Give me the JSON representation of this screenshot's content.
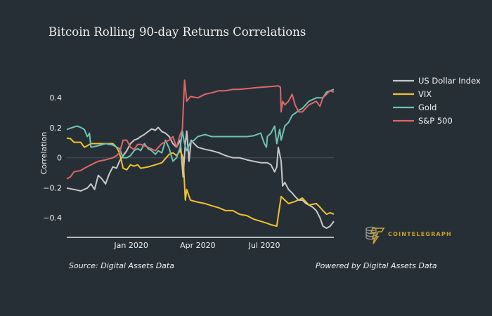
{
  "chart_data": {
    "type": "line",
    "title": "Bitcoin Rolling 90-day Returns Correlations",
    "xlabel": "",
    "ylabel": "Correlation",
    "xlim": [
      "2019-10-05",
      "2020-10-04"
    ],
    "ylim": [
      -0.53,
      0.55
    ],
    "x_ticks": [
      {
        "value": "2020-01-01",
        "label": "Jan 2020"
      },
      {
        "value": "2020-04-01",
        "label": "Apr 2020"
      },
      {
        "value": "2020-07-01",
        "label": "Jul 2020"
      }
    ],
    "y_ticks": [
      {
        "value": 0.4,
        "label": "0.4"
      },
      {
        "value": 0.2,
        "label": "0.2"
      },
      {
        "value": 0,
        "label": "0"
      },
      {
        "value": -0.2,
        "label": "−0.2"
      },
      {
        "value": -0.4,
        "label": "−0.4"
      }
    ],
    "grid": false,
    "zero_line": true,
    "legend_position": "top-right",
    "series": [
      {
        "name": "US Dollar Index",
        "color": "#c8c8c8",
        "x": [
          "2019-10-05",
          "2019-10-15",
          "2019-10-24",
          "2019-11-02",
          "2019-11-07",
          "2019-11-12",
          "2019-11-17",
          "2019-11-22",
          "2019-11-27",
          "2019-12-02",
          "2019-12-07",
          "2019-12-12",
          "2019-12-16",
          "2019-12-21",
          "2019-12-26",
          "2019-12-31",
          "2020-01-05",
          "2020-01-10",
          "2020-01-14",
          "2020-01-19",
          "2020-01-24",
          "2020-01-29",
          "2020-02-03",
          "2020-02-07",
          "2020-02-12",
          "2020-02-17",
          "2020-02-22",
          "2020-02-27",
          "2020-03-03",
          "2020-03-08",
          "2020-03-12",
          "2020-03-15",
          "2020-03-17",
          "2020-03-20",
          "2020-03-23",
          "2020-03-27",
          "2020-04-01",
          "2020-04-11",
          "2020-04-20",
          "2020-04-30",
          "2020-05-09",
          "2020-05-19",
          "2020-05-28",
          "2020-06-07",
          "2020-06-16",
          "2020-06-26",
          "2020-07-05",
          "2020-07-10",
          "2020-07-15",
          "2020-07-18",
          "2020-07-20",
          "2020-07-22",
          "2020-07-24",
          "2020-07-26",
          "2020-07-29",
          "2020-08-03",
          "2020-08-08",
          "2020-08-12",
          "2020-08-17",
          "2020-08-22",
          "2020-08-27",
          "2020-08-31",
          "2020-09-05",
          "2020-09-10",
          "2020-09-15",
          "2020-09-19",
          "2020-09-24",
          "2020-09-29",
          "2020-10-04"
        ],
        "y": [
          -0.202,
          -0.211,
          -0.221,
          -0.202,
          -0.174,
          -0.211,
          -0.117,
          -0.141,
          -0.174,
          -0.108,
          -0.061,
          -0.07,
          -0.023,
          0.014,
          0.047,
          0.094,
          0.117,
          0.127,
          0.141,
          0.155,
          0.174,
          0.192,
          0.183,
          0.202,
          0.174,
          0.164,
          0.141,
          0.094,
          0.07,
          0.117,
          -0.127,
          0.094,
          0.178,
          -0.023,
          0.117,
          0.094,
          0.07,
          0.056,
          0.047,
          0.033,
          0.014,
          0.0,
          0.0,
          -0.014,
          -0.023,
          -0.033,
          -0.033,
          -0.047,
          -0.094,
          -0.061,
          0.07,
          0.023,
          -0.023,
          -0.188,
          -0.164,
          -0.211,
          -0.235,
          -0.258,
          -0.282,
          -0.282,
          -0.305,
          -0.315,
          -0.329,
          -0.352,
          -0.399,
          -0.455,
          -0.469,
          -0.455,
          -0.423
        ]
      },
      {
        "name": "VIX",
        "color": "#f2c12e",
        "x": [
          "2019-10-05",
          "2019-10-10",
          "2019-10-15",
          "2019-10-24",
          "2019-10-29",
          "2019-11-02",
          "2019-11-07",
          "2019-11-17",
          "2019-11-27",
          "2019-12-07",
          "2019-12-12",
          "2019-12-16",
          "2019-12-21",
          "2019-12-26",
          "2019-12-31",
          "2020-01-05",
          "2020-01-10",
          "2020-01-14",
          "2020-01-24",
          "2020-02-03",
          "2020-02-12",
          "2020-02-22",
          "2020-02-27",
          "2020-03-03",
          "2020-03-08",
          "2020-03-12",
          "2020-03-15",
          "2020-03-17",
          "2020-03-22",
          "2020-04-01",
          "2020-04-11",
          "2020-04-20",
          "2020-04-30",
          "2020-05-09",
          "2020-05-19",
          "2020-05-28",
          "2020-06-07",
          "2020-06-16",
          "2020-06-26",
          "2020-07-05",
          "2020-07-10",
          "2020-07-18",
          "2020-07-24",
          "2020-07-29",
          "2020-08-03",
          "2020-08-12",
          "2020-08-22",
          "2020-08-31",
          "2020-09-10",
          "2020-09-15",
          "2020-09-19",
          "2020-09-24",
          "2020-09-29",
          "2020-10-04"
        ],
        "y": [
          0.131,
          0.127,
          0.103,
          0.103,
          0.07,
          0.08,
          0.094,
          0.094,
          0.094,
          0.094,
          0.07,
          0.033,
          -0.07,
          -0.08,
          -0.047,
          -0.056,
          -0.047,
          -0.07,
          -0.061,
          -0.047,
          -0.033,
          0.023,
          0.033,
          0.014,
          0.047,
          0.0,
          -0.282,
          -0.211,
          -0.282,
          -0.296,
          -0.305,
          -0.319,
          -0.333,
          -0.352,
          -0.352,
          -0.376,
          -0.385,
          -0.408,
          -0.423,
          -0.437,
          -0.446,
          -0.455,
          -0.258,
          -0.282,
          -0.305,
          -0.291,
          -0.268,
          -0.315,
          -0.305,
          -0.329,
          -0.352,
          -0.376,
          -0.366,
          -0.376
        ]
      },
      {
        "name": "Gold",
        "color": "#6fc2b4",
        "x": [
          "2019-10-05",
          "2019-10-10",
          "2019-10-19",
          "2019-10-24",
          "2019-10-29",
          "2019-11-02",
          "2019-11-05",
          "2019-11-07",
          "2019-11-17",
          "2019-11-27",
          "2019-12-07",
          "2019-12-12",
          "2019-12-16",
          "2019-12-21",
          "2019-12-26",
          "2019-12-31",
          "2020-01-05",
          "2020-01-10",
          "2020-01-14",
          "2020-01-19",
          "2020-01-24",
          "2020-01-29",
          "2020-02-03",
          "2020-02-07",
          "2020-02-12",
          "2020-02-17",
          "2020-02-22",
          "2020-02-27",
          "2020-03-03",
          "2020-03-08",
          "2020-03-11",
          "2020-03-14",
          "2020-03-17",
          "2020-03-22",
          "2020-03-27",
          "2020-04-01",
          "2020-04-11",
          "2020-04-20",
          "2020-04-30",
          "2020-05-09",
          "2020-05-19",
          "2020-05-28",
          "2020-06-07",
          "2020-06-16",
          "2020-06-26",
          "2020-07-01",
          "2020-07-04",
          "2020-07-05",
          "2020-07-10",
          "2020-07-15",
          "2020-07-18",
          "2020-07-22",
          "2020-07-24",
          "2020-07-29",
          "2020-08-03",
          "2020-08-08",
          "2020-08-12",
          "2020-08-17",
          "2020-08-22",
          "2020-08-31",
          "2020-09-10",
          "2020-09-19",
          "2020-09-24",
          "2020-09-29",
          "2020-10-04"
        ],
        "y": [
          0.188,
          0.197,
          0.211,
          0.202,
          0.188,
          0.141,
          0.164,
          0.07,
          0.08,
          0.094,
          0.085,
          0.07,
          0.061,
          0.0,
          0.0,
          0.014,
          0.047,
          0.061,
          0.047,
          0.094,
          0.061,
          0.047,
          0.023,
          0.047,
          0.033,
          0.117,
          0.061,
          -0.023,
          0.0,
          0.07,
          0.178,
          0.094,
          0.047,
          0.103,
          0.117,
          0.141,
          0.155,
          0.141,
          0.141,
          0.141,
          0.141,
          0.141,
          0.141,
          0.146,
          0.164,
          0.094,
          0.07,
          0.141,
          0.164,
          0.211,
          0.094,
          0.188,
          0.117,
          0.211,
          0.235,
          0.282,
          0.296,
          0.315,
          0.329,
          0.376,
          0.399,
          0.399,
          0.437,
          0.446,
          0.455
        ]
      },
      {
        "name": "S&P 500",
        "color": "#e06666",
        "x": [
          "2019-10-05",
          "2019-10-10",
          "2019-10-15",
          "2019-10-24",
          "2019-10-29",
          "2019-11-07",
          "2019-11-17",
          "2019-11-27",
          "2019-12-07",
          "2019-12-12",
          "2019-12-16",
          "2019-12-21",
          "2019-12-26",
          "2019-12-31",
          "2020-01-05",
          "2020-01-10",
          "2020-01-14",
          "2020-01-24",
          "2020-02-03",
          "2020-02-12",
          "2020-02-22",
          "2020-02-27",
          "2020-03-03",
          "2020-03-08",
          "2020-03-11",
          "2020-03-12",
          "2020-03-14",
          "2020-03-17",
          "2020-03-22",
          "2020-04-01",
          "2020-04-11",
          "2020-04-20",
          "2020-04-30",
          "2020-05-09",
          "2020-05-19",
          "2020-05-28",
          "2020-06-07",
          "2020-06-16",
          "2020-06-26",
          "2020-07-10",
          "2020-07-20",
          "2020-07-23",
          "2020-07-24",
          "2020-07-26",
          "2020-07-29",
          "2020-08-03",
          "2020-08-08",
          "2020-08-12",
          "2020-08-17",
          "2020-08-22",
          "2020-08-31",
          "2020-09-10",
          "2020-09-15",
          "2020-09-19",
          "2020-09-24",
          "2020-09-29",
          "2020-10-04"
        ],
        "y": [
          -0.141,
          -0.127,
          -0.094,
          -0.085,
          -0.07,
          -0.047,
          -0.023,
          -0.014,
          0.0,
          0.014,
          0.033,
          0.117,
          0.117,
          0.07,
          0.056,
          0.089,
          0.089,
          0.07,
          0.047,
          0.094,
          0.117,
          0.141,
          0.07,
          0.155,
          0.188,
          0.305,
          0.516,
          0.376,
          0.408,
          0.399,
          0.423,
          0.432,
          0.446,
          0.446,
          0.455,
          0.455,
          0.46,
          0.465,
          0.469,
          0.474,
          0.479,
          0.469,
          0.305,
          0.376,
          0.352,
          0.376,
          0.423,
          0.352,
          0.305,
          0.305,
          0.352,
          0.376,
          0.343,
          0.399,
          0.423,
          0.446,
          0.437
        ]
      }
    ],
    "source_text": "Source: Digital Assets Data",
    "powered_text": "Powered by Digital Assets Data",
    "logo_text": "COINTELEGRAPH"
  }
}
